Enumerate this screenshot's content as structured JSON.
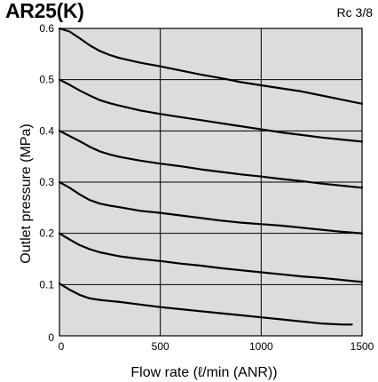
{
  "header": {
    "title": "AR25(K)",
    "port_size": "Rc 3/8"
  },
  "chart_data": {
    "type": "line",
    "title": "AR25(K)",
    "subtitle": "Rc 3/8",
    "xlabel": "Flow rate (ℓ/min (ANR))",
    "ylabel": "Outlet pressure (MPa)",
    "xlim": [
      0,
      1500
    ],
    "ylim": [
      0,
      0.6
    ],
    "x_ticks": [
      0,
      500,
      1000,
      1500
    ],
    "x_tick_labels": [
      "0",
      "500",
      "1000",
      "1500"
    ],
    "y_ticks": [
      0,
      0.1,
      0.2,
      0.3,
      0.4,
      0.5,
      0.6
    ],
    "y_tick_labels": [
      "0",
      "0.1",
      "0.2",
      "0.3",
      "0.4",
      "0.5",
      "0.6"
    ],
    "grid": true,
    "background_color": "#dcdcdc",
    "line_color": "#000000",
    "series": [
      {
        "x": [
          0,
          50,
          100,
          150,
          200,
          250,
          300,
          400,
          500,
          600,
          700,
          800,
          900,
          1000,
          1100,
          1200,
          1300,
          1400,
          1500
        ],
        "y": [
          0.6,
          0.594,
          0.581,
          0.567,
          0.556,
          0.548,
          0.542,
          0.533,
          0.526,
          0.518,
          0.51,
          0.503,
          0.495,
          0.489,
          0.483,
          0.477,
          0.469,
          0.461,
          0.453
        ]
      },
      {
        "x": [
          0,
          50,
          100,
          150,
          200,
          250,
          300,
          400,
          500,
          600,
          700,
          800,
          900,
          1000,
          1100,
          1200,
          1300,
          1400,
          1500
        ],
        "y": [
          0.5,
          0.49,
          0.479,
          0.469,
          0.46,
          0.454,
          0.449,
          0.44,
          0.433,
          0.427,
          0.421,
          0.415,
          0.409,
          0.403,
          0.397,
          0.392,
          0.387,
          0.383,
          0.379
        ]
      },
      {
        "x": [
          0,
          50,
          100,
          150,
          200,
          250,
          300,
          400,
          500,
          600,
          700,
          800,
          900,
          1000,
          1100,
          1200,
          1300,
          1400,
          1500
        ],
        "y": [
          0.4,
          0.39,
          0.38,
          0.369,
          0.36,
          0.354,
          0.349,
          0.342,
          0.336,
          0.331,
          0.325,
          0.32,
          0.315,
          0.311,
          0.306,
          0.302,
          0.297,
          0.293,
          0.289
        ]
      },
      {
        "x": [
          0,
          50,
          100,
          150,
          200,
          250,
          300,
          400,
          500,
          600,
          700,
          800,
          900,
          1000,
          1100,
          1200,
          1300,
          1400,
          1500
        ],
        "y": [
          0.3,
          0.289,
          0.276,
          0.265,
          0.258,
          0.254,
          0.251,
          0.244,
          0.24,
          0.235,
          0.23,
          0.225,
          0.221,
          0.218,
          0.215,
          0.211,
          0.207,
          0.203,
          0.2
        ]
      },
      {
        "x": [
          0,
          50,
          100,
          150,
          200,
          250,
          300,
          400,
          500,
          600,
          700,
          800,
          900,
          1000,
          1100,
          1200,
          1300,
          1400,
          1500
        ],
        "y": [
          0.2,
          0.188,
          0.177,
          0.169,
          0.163,
          0.159,
          0.155,
          0.15,
          0.146,
          0.141,
          0.137,
          0.132,
          0.128,
          0.124,
          0.12,
          0.116,
          0.113,
          0.109,
          0.105
        ]
      },
      {
        "x": [
          0,
          50,
          100,
          150,
          200,
          250,
          300,
          400,
          500,
          600,
          700,
          800,
          900,
          1000,
          1100,
          1200,
          1300,
          1400,
          1450
        ],
        "y": [
          0.102,
          0.09,
          0.08,
          0.073,
          0.07,
          0.068,
          0.066,
          0.061,
          0.056,
          0.052,
          0.048,
          0.044,
          0.04,
          0.036,
          0.032,
          0.028,
          0.024,
          0.022,
          0.022
        ]
      }
    ]
  }
}
